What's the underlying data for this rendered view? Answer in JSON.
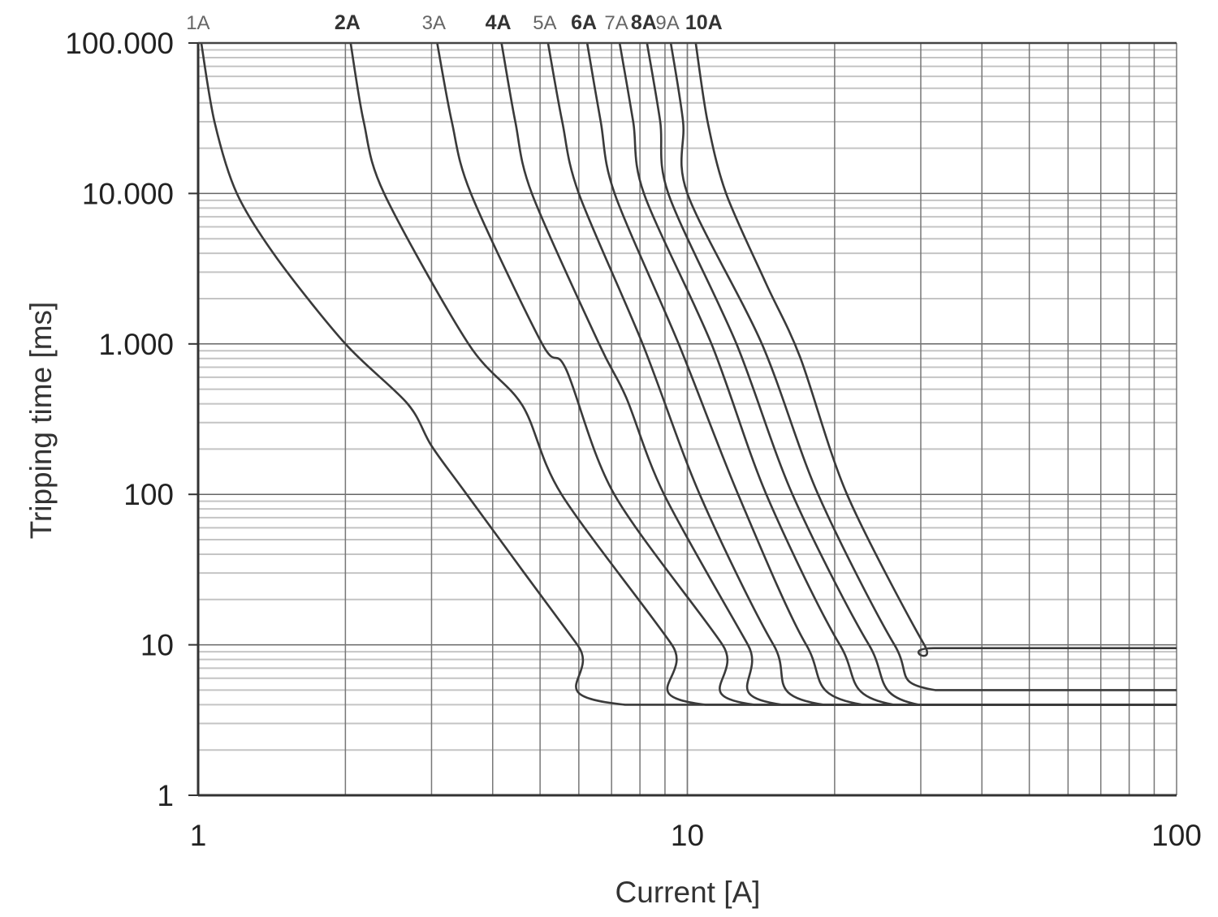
{
  "chart_data": {
    "type": "line",
    "title": "",
    "xlabel": "Current [A]",
    "ylabel": "Tripping time [ms]",
    "x_scale": "log",
    "y_scale": "log",
    "xlim": [
      1,
      100
    ],
    "ylim": [
      1,
      100000
    ],
    "x_ticks": [
      {
        "value": 1,
        "label": "1"
      },
      {
        "value": 10,
        "label": "10"
      },
      {
        "value": 100,
        "label": "100"
      }
    ],
    "y_ticks": [
      {
        "value": 100000,
        "label": "100.000"
      },
      {
        "value": 10000,
        "label": "10.000"
      },
      {
        "value": 1000,
        "label": "1.000"
      },
      {
        "value": 100,
        "label": "100"
      },
      {
        "value": 10,
        "label": "10"
      },
      {
        "value": 1,
        "label": "1"
      }
    ],
    "grid": true,
    "line_color": "#3a3a3a",
    "series": [
      {
        "name": "1A",
        "bold": false,
        "points": [
          [
            1.015,
            100000
          ],
          [
            1.08,
            30000
          ],
          [
            1.2,
            10000
          ],
          [
            1.45,
            3700
          ],
          [
            2.0,
            1000
          ],
          [
            2.68,
            400
          ],
          [
            3.0,
            210
          ],
          [
            3.54,
            100
          ],
          [
            5.96,
            10
          ],
          [
            7.46,
            4
          ],
          [
            100,
            4
          ]
        ]
      },
      {
        "name": "2A",
        "bold": true,
        "points": [
          [
            2.05,
            100000
          ],
          [
            2.18,
            30000
          ],
          [
            2.4,
            10000
          ],
          [
            3.57,
            1000
          ],
          [
            4.6,
            390
          ],
          [
            5.53,
            100
          ],
          [
            9.3,
            10
          ],
          [
            10.9,
            4
          ],
          [
            100,
            4
          ]
        ]
      },
      {
        "name": "3A",
        "bold": false,
        "points": [
          [
            3.08,
            100000
          ],
          [
            3.3,
            30000
          ],
          [
            3.61,
            10000
          ],
          [
            5.05,
            1000
          ],
          [
            5.65,
            680
          ],
          [
            7.09,
            100
          ],
          [
            11.8,
            10
          ],
          [
            13.7,
            4
          ],
          [
            100,
            4
          ]
        ]
      },
      {
        "name": "4A",
        "bold": true,
        "points": [
          [
            4.17,
            100000
          ],
          [
            4.45,
            30000
          ],
          [
            4.81,
            10000
          ],
          [
            6.6,
            1000
          ],
          [
            7.5,
            440
          ],
          [
            8.96,
            100
          ],
          [
            13.3,
            10
          ],
          [
            15.6,
            4
          ],
          [
            100,
            4
          ]
        ]
      },
      {
        "name": "5A",
        "bold": false,
        "points": [
          [
            5.19,
            100000
          ],
          [
            5.55,
            30000
          ],
          [
            6.0,
            10000
          ],
          [
            8.1,
            1000
          ],
          [
            10.6,
            100
          ],
          [
            15.0,
            10
          ],
          [
            19.0,
            4
          ],
          [
            100,
            4
          ]
        ]
      },
      {
        "name": "6A",
        "bold": true,
        "points": [
          [
            6.24,
            100000
          ],
          [
            6.65,
            30000
          ],
          [
            7.1,
            10000
          ],
          [
            9.6,
            1000
          ],
          [
            12.7,
            100
          ],
          [
            17.5,
            10
          ],
          [
            22.8,
            4
          ],
          [
            100,
            4
          ]
        ]
      },
      {
        "name": "7A",
        "bold": false,
        "points": [
          [
            7.27,
            100000
          ],
          [
            7.75,
            30000
          ],
          [
            8.15,
            10000
          ],
          [
            11.2,
            1000
          ],
          [
            14.5,
            100
          ],
          [
            20.5,
            10
          ],
          [
            26.4,
            4
          ],
          [
            100,
            4
          ]
        ]
      },
      {
        "name": "8A",
        "bold": true,
        "points": [
          [
            8.27,
            100000
          ],
          [
            8.8,
            30000
          ],
          [
            9.14,
            10000
          ],
          [
            12.6,
            1000
          ],
          [
            16.4,
            100
          ],
          [
            23.5,
            10
          ],
          [
            29.7,
            4
          ],
          [
            100,
            4
          ]
        ]
      },
      {
        "name": "9A",
        "bold": false,
        "points": [
          [
            9.25,
            100000
          ],
          [
            9.8,
            30000
          ],
          [
            10.0,
            10000
          ],
          [
            14.2,
            1000
          ],
          [
            18.5,
            100
          ],
          [
            26.5,
            10
          ],
          [
            32.1,
            5
          ],
          [
            100,
            5
          ]
        ]
      },
      {
        "name": "10A",
        "bold": true,
        "points": [
          [
            10.4,
            100000
          ],
          [
            11.0,
            30000
          ],
          [
            12.0,
            10000
          ],
          [
            14.5,
            2500
          ],
          [
            17.0,
            818
          ],
          [
            21.2,
            100
          ],
          [
            30.5,
            10
          ],
          [
            32.1,
            9.5
          ],
          [
            100,
            9.5
          ]
        ]
      }
    ]
  }
}
